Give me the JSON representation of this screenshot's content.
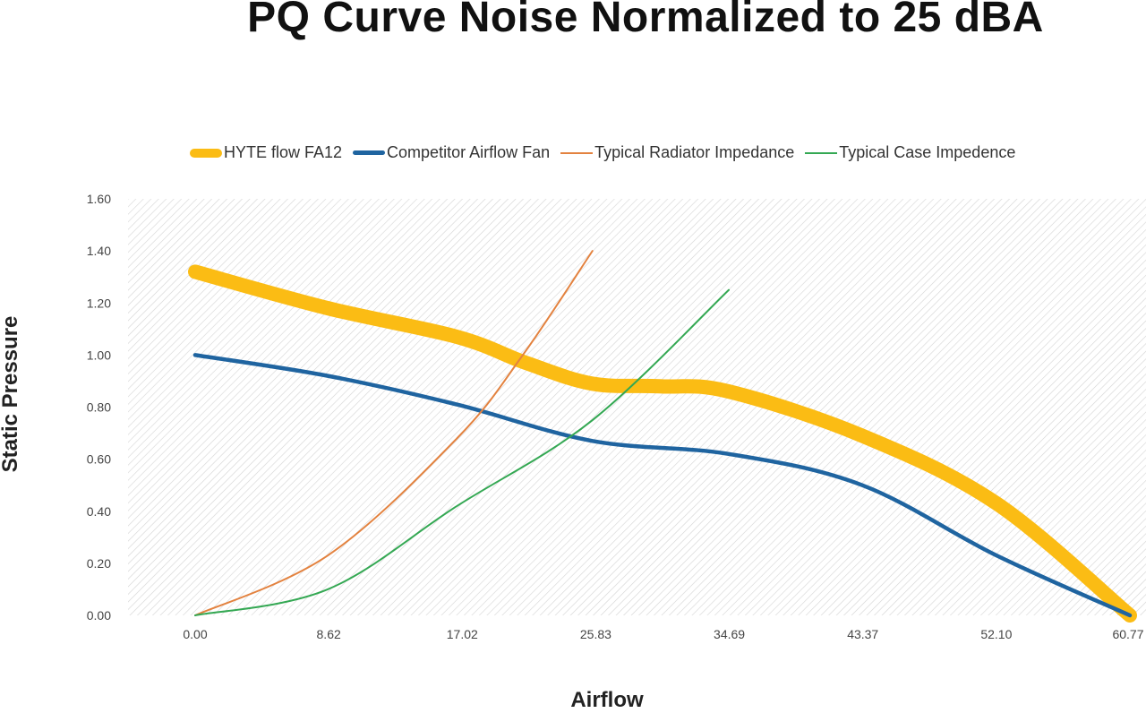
{
  "chart_data": {
    "type": "line",
    "title": "PQ Curve Noise Normalized to 25 dBA",
    "xlabel": "Airflow",
    "ylabel": "Static Pressure",
    "x_ticks": [
      "0.00",
      "8.62",
      "17.02",
      "25.83",
      "34.69",
      "43.37",
      "52.10",
      "60.77"
    ],
    "y_ticks": [
      "0.00",
      "0.20",
      "0.40",
      "0.60",
      "0.80",
      "1.00",
      "1.20",
      "1.40",
      "1.60"
    ],
    "xlim": [
      0,
      60.77
    ],
    "ylim": [
      0,
      1.6
    ],
    "grid": false,
    "legend_position": "top",
    "series": [
      {
        "name": "HYTE flow FA12",
        "color": "#FBBC14",
        "width": 16,
        "x": [
          0,
          8.62,
          17.02,
          21.5,
          25.83,
          30.2,
          34.69,
          43.37,
          52.1,
          60.77
        ],
        "y": [
          1.32,
          1.18,
          1.07,
          0.97,
          0.89,
          0.88,
          0.86,
          0.69,
          0.43,
          0.0
        ]
      },
      {
        "name": "Competitor Airflow Fan",
        "color": "#1F64A0",
        "width": 4.5,
        "x": [
          0,
          8.62,
          17.02,
          25.83,
          34.69,
          43.37,
          52.1,
          60.77
        ],
        "y": [
          1.0,
          0.92,
          0.81,
          0.67,
          0.62,
          0.5,
          0.23,
          0.0
        ]
      },
      {
        "name": "Typical Radiator Impedance",
        "color": "#E3823F",
        "width": 2,
        "x": [
          0,
          8.62,
          17.02,
          21.3,
          25.83
        ],
        "y": [
          0.0,
          0.23,
          0.68,
          1.0,
          1.4
        ]
      },
      {
        "name": "Typical Case Impedence",
        "color": "#34A853",
        "width": 2,
        "x": [
          0,
          8.62,
          17.02,
          25.83,
          34.69
        ],
        "y": [
          0.0,
          0.1,
          0.42,
          0.75,
          1.25
        ]
      }
    ]
  }
}
